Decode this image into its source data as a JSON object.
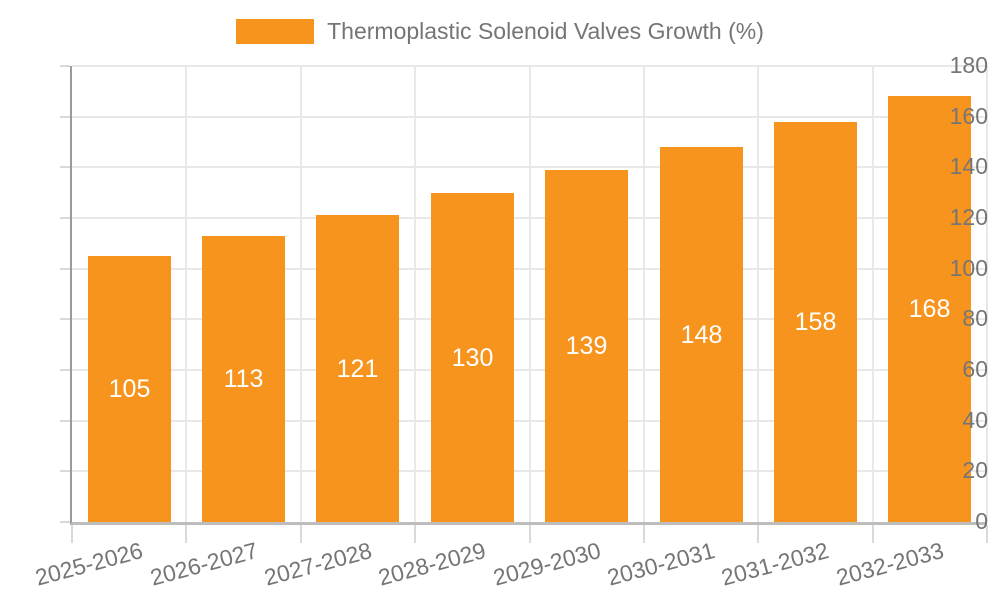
{
  "legend": {
    "label": "Thermoplastic Solenoid Valves Growth (%)",
    "swatch_color": "#f7941e"
  },
  "chart_data": {
    "type": "bar",
    "title": "Thermoplastic Solenoid Valves Growth (%)",
    "categories": [
      "2025-2026",
      "2026-2027",
      "2027-2028",
      "2028-2029",
      "2029-2030",
      "2030-2031",
      "2031-2032",
      "2032-2033"
    ],
    "values": [
      105,
      113,
      121,
      130,
      139,
      148,
      158,
      168
    ],
    "xlabel": "",
    "ylabel": "",
    "ylim": [
      0,
      180
    ],
    "yticks": [
      0,
      20,
      40,
      60,
      80,
      100,
      120,
      140,
      160,
      180
    ],
    "grid": true,
    "legend_position": "top-center",
    "bar_color": "#f7941e",
    "value_label_color": "#ffffff"
  },
  "colors": {
    "bar": "#f7941e",
    "grid": "#e8e8e8",
    "axis_y": "#9a9a9a",
    "axis_x": "#bdbdbd",
    "tick": "#d9d9d9",
    "text": "#757575",
    "value_label": "#ffffff",
    "background": "#ffffff"
  }
}
